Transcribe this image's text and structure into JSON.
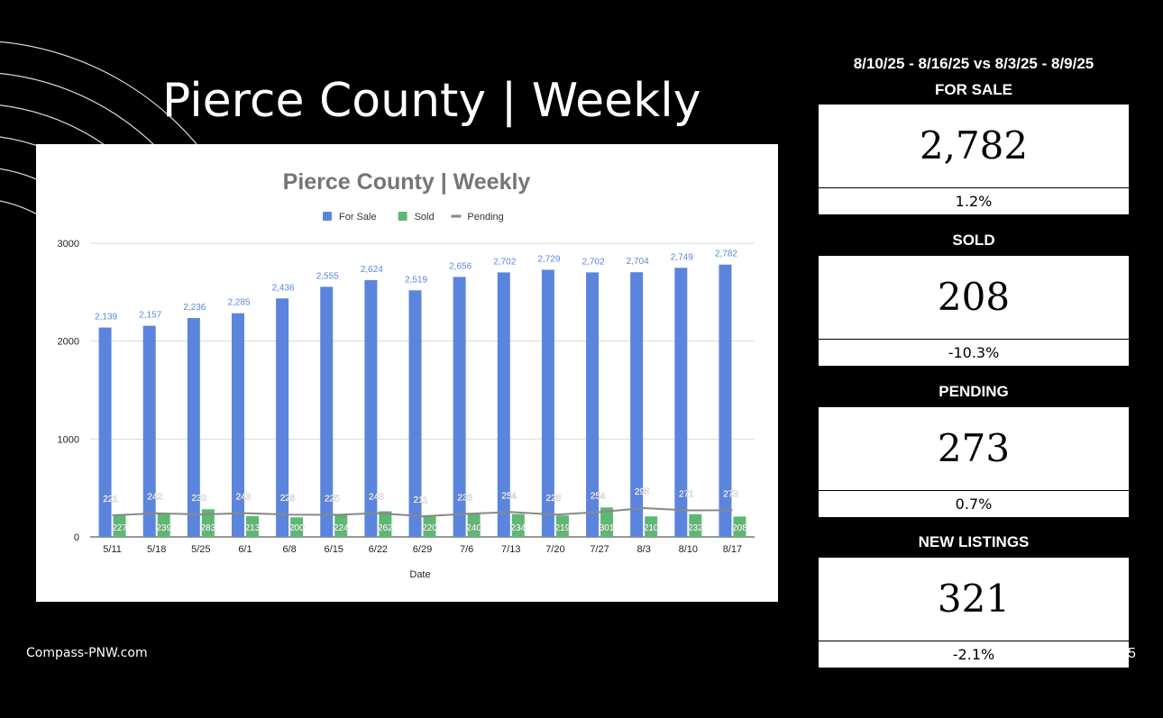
{
  "slide": {
    "title": "Pierce County | Weekly",
    "footer": "Compass-PNW.com",
    "page_number": "5"
  },
  "summary": {
    "date_range": "8/10/25 - 8/16/25 vs 8/3/25 - 8/9/25",
    "metrics": [
      {
        "label": "FOR SALE",
        "value": "2,782",
        "change": "1.2%"
      },
      {
        "label": "SOLD",
        "value": "208",
        "change": "-10.3%"
      },
      {
        "label": "PENDING",
        "value": "273",
        "change": "0.7%"
      },
      {
        "label": "NEW LISTINGS",
        "value": "321",
        "change": "-2.1%"
      }
    ]
  },
  "chart_data": {
    "type": "bar",
    "title": "Pierce County | Weekly",
    "xlabel": "Date",
    "ylabel": "",
    "ylim": [
      0,
      3000
    ],
    "yticks": [
      0,
      1000,
      2000,
      3000
    ],
    "grid": true,
    "legend_position": "top",
    "categories": [
      "5/11",
      "5/18",
      "5/25",
      "6/1",
      "6/8",
      "6/15",
      "6/22",
      "6/29",
      "7/6",
      "7/13",
      "7/20",
      "7/27",
      "8/3",
      "8/10",
      "8/17"
    ],
    "series": [
      {
        "name": "For Sale",
        "kind": "bar",
        "color": "#5b85dd",
        "label_color": "#5b85dd",
        "values": [
          2139,
          2157,
          2236,
          2285,
          2436,
          2555,
          2624,
          2519,
          2656,
          2702,
          2729,
          2702,
          2704,
          2749,
          2782
        ]
      },
      {
        "name": "Sold",
        "kind": "bar",
        "color": "#5cb872",
        "label_color": "#ffffff",
        "values": [
          227,
          239,
          283,
          213,
          200,
          224,
          262,
          220,
          240,
          234,
          219,
          301,
          210,
          232,
          208
        ]
      },
      {
        "name": "Pending",
        "kind": "line",
        "color": "#888888",
        "label_color": "#ffffff",
        "values": [
          221,
          242,
          230,
          243,
          228,
          225,
          243,
          211,
          236,
          254,
          228,
          254,
          295,
          271,
          273
        ]
      }
    ]
  }
}
